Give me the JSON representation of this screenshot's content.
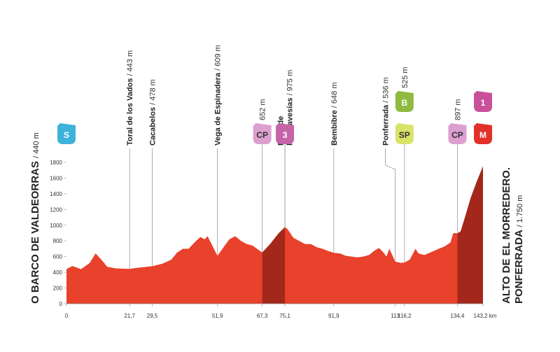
{
  "chart_data": {
    "type": "area",
    "x": [
      0,
      2,
      5,
      8,
      10,
      12,
      14,
      17,
      21.7,
      25,
      29.5,
      33,
      36,
      38,
      40,
      42,
      44,
      46,
      47.5,
      48.5,
      50,
      51.9,
      54,
      56,
      58,
      60,
      62,
      64,
      65.5,
      67.3,
      70,
      73,
      75.1,
      76,
      78,
      80,
      82,
      84,
      86,
      88,
      90,
      91.9,
      94,
      96,
      98,
      100,
      102,
      104,
      106,
      107.5,
      109,
      110,
      111,
      112,
      113,
      115,
      116.2,
      118,
      120,
      121,
      123,
      125,
      128,
      130,
      132,
      133,
      134.4,
      135.5,
      137,
      139,
      141,
      143.2
    ],
    "values": [
      440,
      480,
      440,
      520,
      640,
      560,
      470,
      450,
      443,
      460,
      478,
      510,
      560,
      650,
      700,
      700,
      780,
      850,
      820,
      860,
      750,
      609,
      720,
      820,
      860,
      800,
      760,
      740,
      700,
      652,
      760,
      900,
      975,
      950,
      840,
      800,
      760,
      760,
      720,
      700,
      670,
      648,
      640,
      610,
      600,
      590,
      600,
      620,
      680,
      710,
      650,
      600,
      700,
      620,
      536,
      520,
      525,
      560,
      700,
      640,
      620,
      650,
      700,
      730,
      780,
      900,
      897,
      920,
      1100,
      1350,
      1550,
      1750
    ],
    "xlim": [
      0,
      143.2
    ],
    "ylim": [
      0,
      1800
    ],
    "yticks": [
      0,
      200,
      400,
      600,
      800,
      1000,
      1200,
      1400,
      1600,
      1800
    ],
    "xticks": [
      0,
      {
        "value": 21.7,
        "label": "21,7"
      },
      {
        "value": 29.5,
        "label": "29,5"
      },
      {
        "value": 51.9,
        "label": "51,9"
      },
      {
        "value": 67.3,
        "label": "67,3"
      },
      {
        "value": 75.1,
        "label": "75,1"
      },
      {
        "value": 91.9,
        "label": "91,9"
      },
      113,
      {
        "value": 116.2,
        "label": "116,2"
      },
      {
        "value": 134.4,
        "label": "134,4"
      },
      {
        "value": 143.2,
        "label": "143,2 km"
      }
    ],
    "color": "#e8412c",
    "highlight_color": "#a3281b",
    "highlights": [
      {
        "from": 67.3,
        "to": 75.1
      },
      {
        "from": 134.4,
        "to": 143.2
      }
    ],
    "start": {
      "name": "O BARCO DE VALDEORRAS",
      "detail": "/ 440 m"
    },
    "finish": {
      "name": [
        "ALTO DE EL MORREDERO.",
        "PONFERRADA"
      ],
      "detail": "/ 1.750 m"
    },
    "waypoints": [
      {
        "km": 21.7,
        "name": [
          "Toral de los Vados"
        ],
        "detail": "/ 443 m"
      },
      {
        "km": 29.5,
        "name": [
          "Cacabelos"
        ],
        "detail": "/ 478 m"
      },
      {
        "km": 51.9,
        "name": [
          "Vega de Espinadera"
        ],
        "detail": "/ 609 m"
      },
      {
        "km": 75.1,
        "name": [
          "Paso de",
          "las Travesías"
        ],
        "detail": "/ 975 m"
      },
      {
        "km": 91.9,
        "name": [
          "Bembibre"
        ],
        "detail": "/ 648 m"
      },
      {
        "km": 113,
        "name": [
          "Ponferrada"
        ],
        "detail": "/ 536 m"
      }
    ],
    "markers": [
      {
        "km": 0,
        "badges": [
          {
            "text": "S",
            "color": "#3db3da",
            "text_color": "#ffffff"
          }
        ]
      },
      {
        "km": 67.3,
        "detail": "652 m",
        "badges": [
          {
            "text": "CP",
            "color": "#dc9fd0",
            "text_color": "#333333"
          }
        ]
      },
      {
        "km": 75.1,
        "badges": [
          {
            "text": "3",
            "color": "#c565a8",
            "text_color": "#ffffff"
          }
        ]
      },
      {
        "km": 116.2,
        "detail": "525 m",
        "badges": [
          {
            "text": "SP",
            "color": "#d9e36a",
            "text_color": "#333333"
          },
          {
            "text": "B",
            "color": "#8fb940",
            "text_color": "#ffffff"
          }
        ]
      },
      {
        "km": 134.4,
        "detail": "897 m",
        "badges": [
          {
            "text": "CP",
            "color": "#dc9fd0",
            "text_color": "#333333"
          }
        ]
      },
      {
        "km": 143.2,
        "badges": [
          {
            "text": "M",
            "color": "#e3312a",
            "text_color": "#ffffff"
          },
          {
            "text": "1",
            "color": "#c8519a",
            "text_color": "#ffffff"
          }
        ]
      }
    ]
  }
}
